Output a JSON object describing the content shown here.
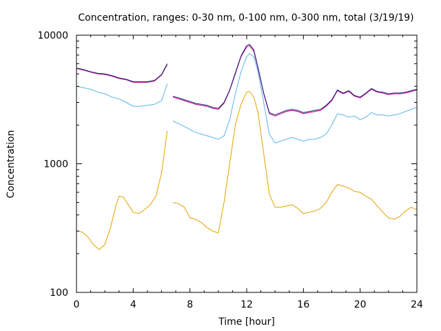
{
  "chart_data": {
    "type": "line",
    "title": "Concentration, ranges: 0-30 nm, 0-100 nm, 0-300 nm, total (3/19/19)",
    "xlabel": "Time [hour]",
    "ylabel": "Concentration",
    "xlim": [
      0,
      24
    ],
    "ylim": [
      100,
      10000
    ],
    "yscale": "log",
    "grid": false,
    "legend": "none",
    "xticks": [
      0,
      4,
      8,
      12,
      16,
      20,
      24
    ],
    "xtick_labels": [
      "0",
      "4",
      "8",
      "12",
      "16",
      "20",
      "24"
    ],
    "yticks": [
      100,
      1000,
      10000
    ],
    "ytick_labels": [
      "100",
      "1000",
      "10000"
    ],
    "series": [
      {
        "color": "#e69f00",
        "x": [
          0,
          0.4,
          0.8,
          1.2,
          1.6,
          2.0,
          2.4,
          2.8,
          3.0,
          3.3,
          3.6,
          4.0,
          4.4,
          4.8,
          5.2,
          5.6,
          6.0,
          6.4,
          null,
          6.8,
          7.2,
          7.6,
          8.0,
          8.4,
          8.8,
          9.2,
          9.6,
          10.0,
          10.4,
          10.8,
          11.2,
          11.6,
          12.0,
          12.2,
          12.5,
          12.8,
          13.2,
          13.6,
          14.0,
          14.4,
          14.8,
          15.2,
          15.6,
          16.0,
          16.4,
          16.8,
          17.2,
          17.6,
          18.0,
          18.4,
          18.8,
          19.2,
          19.6,
          20.0,
          20.4,
          20.8,
          21.2,
          21.6,
          22.0,
          22.4,
          22.8,
          23.2,
          23.6,
          24.0
        ],
        "y": [
          300,
          295,
          270,
          235,
          215,
          235,
          320,
          480,
          560,
          550,
          490,
          420,
          410,
          440,
          480,
          560,
          850,
          1800,
          null,
          500,
          490,
          460,
          380,
          370,
          350,
          320,
          300,
          290,
          500,
          1000,
          2000,
          2900,
          3600,
          3650,
          3300,
          2500,
          1200,
          580,
          460,
          460,
          470,
          480,
          450,
          410,
          420,
          430,
          450,
          500,
          600,
          690,
          670,
          650,
          610,
          600,
          560,
          530,
          470,
          420,
          380,
          370,
          390,
          430,
          460,
          440
        ]
      },
      {
        "color": "#56b4e9",
        "x": [
          0,
          0.5,
          1.0,
          1.5,
          2.0,
          2.5,
          3.0,
          3.5,
          4.0,
          4.5,
          5.0,
          5.5,
          6.0,
          6.4,
          null,
          6.8,
          7.2,
          7.6,
          8.0,
          8.4,
          8.8,
          9.2,
          9.6,
          10.0,
          10.4,
          10.8,
          11.2,
          11.6,
          12.0,
          12.2,
          12.5,
          12.8,
          13.2,
          13.6,
          14.0,
          14.4,
          14.8,
          15.2,
          15.6,
          16.0,
          16.4,
          16.8,
          17.2,
          17.6,
          18.0,
          18.4,
          18.8,
          19.2,
          19.6,
          20.0,
          20.4,
          20.8,
          21.2,
          21.6,
          22.0,
          22.4,
          22.8,
          23.2,
          23.6,
          24.0
        ],
        "y": [
          4000,
          3900,
          3800,
          3600,
          3500,
          3300,
          3200,
          3000,
          2800,
          2800,
          2850,
          2900,
          3100,
          4200,
          null,
          2150,
          2050,
          1950,
          1850,
          1750,
          1700,
          1650,
          1600,
          1550,
          1650,
          2200,
          3500,
          5200,
          6800,
          7200,
          6800,
          5200,
          3000,
          1700,
          1450,
          1500,
          1550,
          1600,
          1550,
          1500,
          1550,
          1550,
          1600,
          1700,
          2000,
          2450,
          2400,
          2300,
          2350,
          2200,
          2300,
          2500,
          2400,
          2400,
          2350,
          2400,
          2450,
          2550,
          2650,
          2750
        ]
      },
      {
        "color": "#cc0080",
        "x": [
          0,
          0.5,
          1.0,
          1.5,
          2.0,
          2.5,
          3.0,
          3.5,
          4.0,
          4.5,
          5.0,
          5.5,
          6.0,
          6.4,
          null,
          6.8,
          7.2,
          7.6,
          8.0,
          8.4,
          8.8,
          9.2,
          9.6,
          10.0,
          10.4,
          10.8,
          11.2,
          11.6,
          12.0,
          12.2,
          12.5,
          12.8,
          13.2,
          13.6,
          14.0,
          14.4,
          14.8,
          15.2,
          15.6,
          16.0,
          16.4,
          16.8,
          17.2,
          17.6,
          18.0,
          18.4,
          18.8,
          19.2,
          19.6,
          20.0,
          20.4,
          20.8,
          21.2,
          21.6,
          22.0,
          22.4,
          22.8,
          23.2,
          23.6,
          24.0
        ],
        "y": [
          5500,
          5350,
          5150,
          5000,
          4950,
          4800,
          4600,
          4500,
          4300,
          4300,
          4300,
          4400,
          4900,
          5900,
          null,
          3300,
          3200,
          3100,
          3000,
          2900,
          2850,
          2800,
          2700,
          2650,
          2950,
          3700,
          5000,
          6800,
          8100,
          8300,
          7500,
          5500,
          3500,
          2450,
          2350,
          2450,
          2550,
          2600,
          2550,
          2450,
          2500,
          2550,
          2600,
          2800,
          3100,
          3700,
          3500,
          3650,
          3350,
          3250,
          3500,
          3800,
          3600,
          3550,
          3450,
          3500,
          3500,
          3550,
          3650,
          3750
        ]
      },
      {
        "color": "#1a237e",
        "x": [
          0,
          0.5,
          1.0,
          1.5,
          2.0,
          2.5,
          3.0,
          3.5,
          4.0,
          4.5,
          5.0,
          5.5,
          6.0,
          6.4,
          null,
          6.8,
          7.2,
          7.6,
          8.0,
          8.4,
          8.8,
          9.2,
          9.6,
          10.0,
          10.4,
          10.8,
          11.2,
          11.6,
          12.0,
          12.2,
          12.5,
          12.8,
          13.2,
          13.6,
          14.0,
          14.4,
          14.8,
          15.2,
          15.6,
          16.0,
          16.4,
          16.8,
          17.2,
          17.6,
          18.0,
          18.4,
          18.8,
          19.2,
          19.6,
          20.0,
          20.4,
          20.8,
          21.2,
          21.6,
          22.0,
          22.4,
          22.8,
          23.2,
          23.6,
          24.0
        ],
        "y": [
          5550,
          5400,
          5200,
          5050,
          5000,
          4850,
          4650,
          4550,
          4350,
          4350,
          4350,
          4450,
          4950,
          6000,
          null,
          3350,
          3250,
          3150,
          3050,
          2950,
          2900,
          2850,
          2750,
          2700,
          3000,
          3750,
          5100,
          6900,
          8300,
          8500,
          7700,
          5600,
          3550,
          2500,
          2400,
          2500,
          2600,
          2650,
          2600,
          2500,
          2550,
          2600,
          2650,
          2850,
          3150,
          3750,
          3550,
          3700,
          3400,
          3300,
          3550,
          3850,
          3650,
          3600,
          3500,
          3550,
          3550,
          3600,
          3700,
          3800
        ]
      }
    ]
  }
}
